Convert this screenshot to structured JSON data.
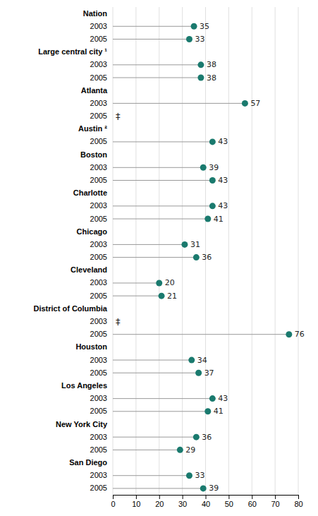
{
  "chart_data": {
    "type": "dot",
    "orientation": "horizontal",
    "categories": [
      "Nation",
      "2003",
      "2005",
      "Large central city ¹",
      "2003",
      "2005",
      "Atlanta",
      "2003",
      "2005",
      "Austin ²",
      "2005",
      "Boston",
      "2003",
      "2005",
      "Charlotte",
      "2003",
      "2005",
      "Chicago",
      "2003",
      "2005",
      "Cleveland",
      "2003",
      "2005",
      "District of Columbia",
      "2003",
      "2005",
      "Houston",
      "2003",
      "2005",
      "Los Angeles",
      "2003",
      "2005",
      "New York City",
      "2003",
      "2005",
      "San Diego",
      "2003",
      "2005"
    ],
    "values": [
      null,
      35,
      33,
      null,
      38,
      38,
      null,
      57,
      null,
      null,
      43,
      null,
      39,
      43,
      null,
      43,
      41,
      null,
      31,
      36,
      null,
      20,
      21,
      null,
      null,
      76,
      null,
      34,
      37,
      null,
      43,
      41,
      null,
      36,
      29,
      null,
      33,
      39
    ],
    "value_labels": [
      null,
      "35",
      "33",
      null,
      "38",
      "38",
      null,
      "57",
      "‡",
      null,
      "43",
      null,
      "39",
      "43",
      null,
      "43",
      "41",
      null,
      "31",
      "36",
      null,
      "20",
      "21",
      null,
      "‡",
      "76",
      null,
      "34",
      "37",
      null,
      "43",
      "41",
      null,
      "36",
      "29",
      null,
      "33",
      "39"
    ],
    "data_labels": true,
    "color": "#1a7a6e",
    "xlim": [
      0,
      80
    ],
    "xticks": [
      0,
      10,
      20,
      30,
      40,
      50,
      60,
      70,
      80
    ],
    "grid": true
  }
}
